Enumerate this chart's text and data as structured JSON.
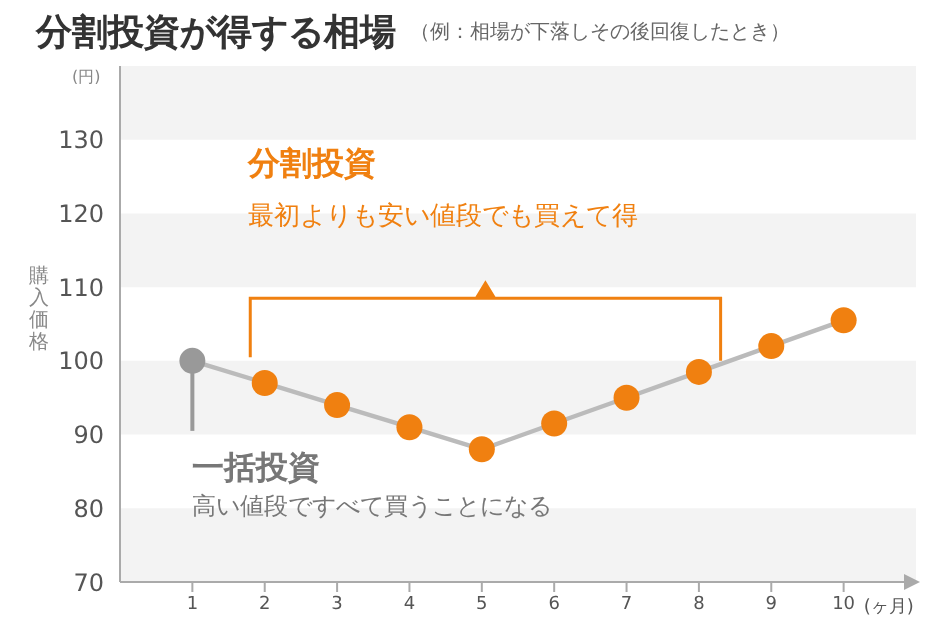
{
  "chart_data": {
    "type": "line",
    "title": "分割投資が得する相場",
    "subtitle": "（例：相場が下落しその後回復したとき）",
    "ylabel": "購入価格",
    "xlabel": "(ヶ月)",
    "annotations": [
      "(円)",
      "分割投資",
      "最初よりも安い値段でも買えて得",
      "一括投資",
      "高い値段ですべて買うことになる"
    ],
    "x": [
      1,
      2,
      3,
      4,
      5,
      6,
      7,
      8,
      9,
      10
    ],
    "series": [
      {
        "color": "#bbbbbb",
        "colors": [
          "#999999",
          "#f08010",
          "#f08010",
          "#f08010",
          "#f08010",
          "#f08010",
          "#f08010",
          "#f08010",
          "#f08010",
          "#f08010"
        ],
        "values": [
          100,
          97,
          94,
          91,
          88,
          91.5,
          95,
          98.5,
          102,
          105.5
        ]
      }
    ],
    "xlim": [
      0,
      11
    ],
    "xticks": [
      1,
      2,
      3,
      4,
      5,
      6,
      7,
      8,
      9,
      10
    ],
    "ylim": [
      70,
      140
    ],
    "yticks": [
      70,
      80,
      90,
      100,
      110,
      120,
      130
    ],
    "bands": [
      {
        "axis": "y",
        "from": 70,
        "to": 80,
        "color": "#f3f3f3"
      },
      {
        "axis": "y",
        "from": 90,
        "to": 100,
        "color": "#f3f3f3"
      },
      {
        "axis": "y",
        "from": 110,
        "to": 120,
        "color": "#f3f3f3"
      },
      {
        "axis": "y",
        "from": 130,
        "to": 140,
        "color": "#f3f3f3"
      }
    ],
    "marker": "circle",
    "grid": false
  }
}
